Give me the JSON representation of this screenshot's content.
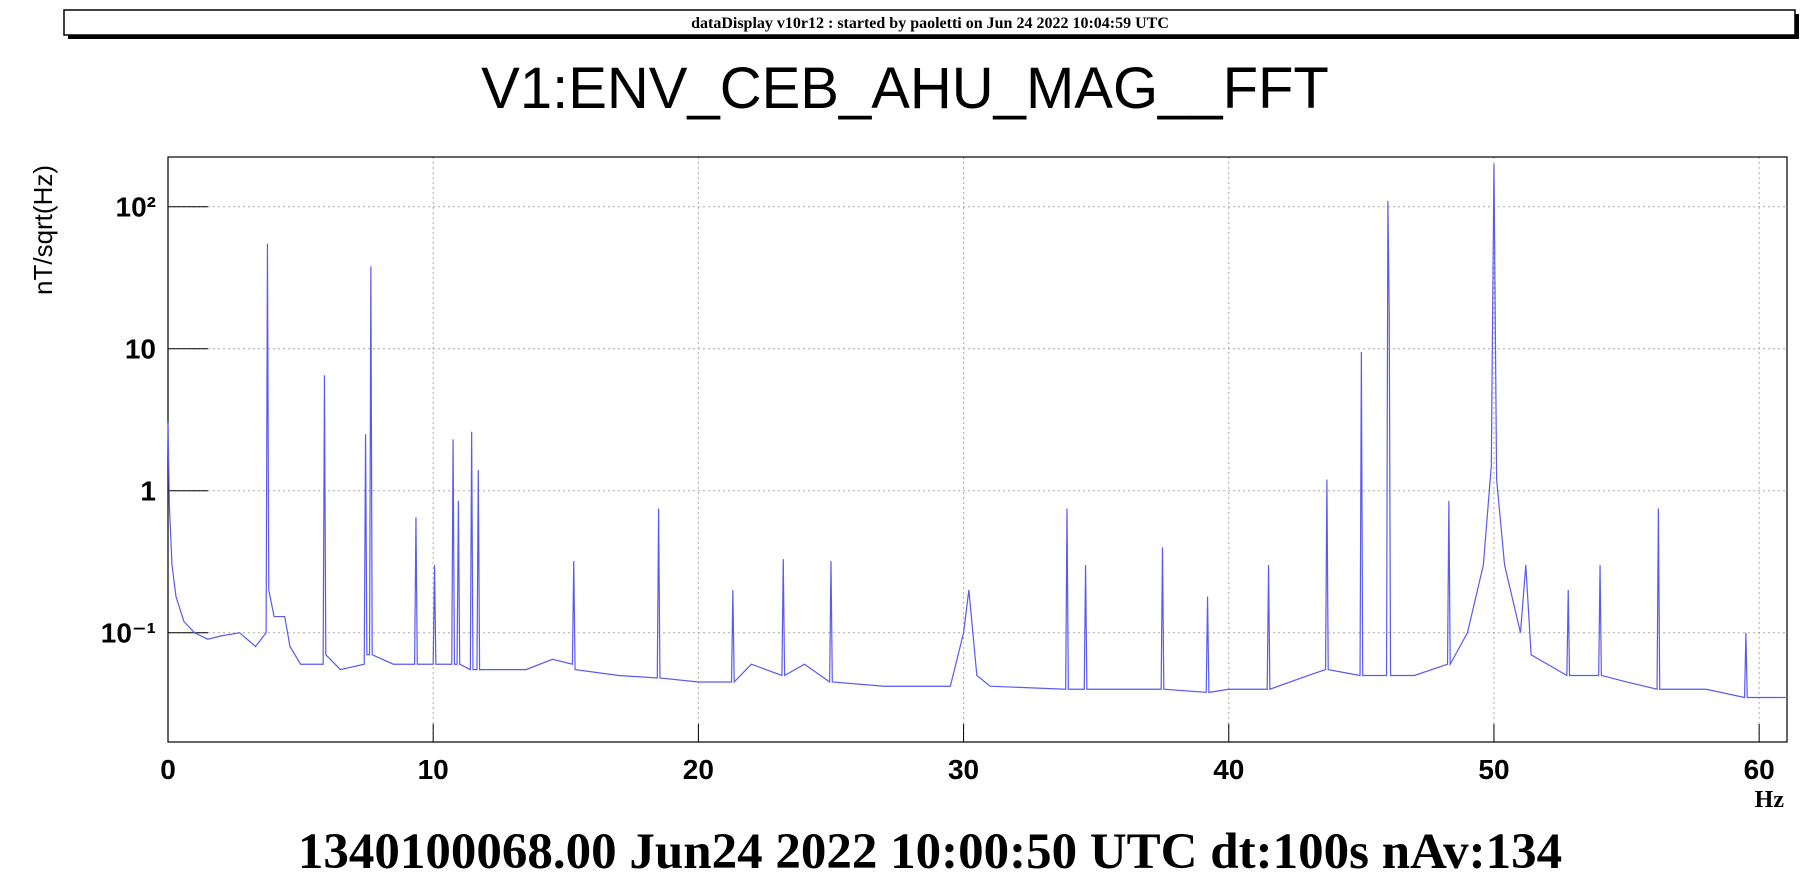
{
  "header": {
    "banner": "dataDisplay v10r12 : started by paoletti on Jun 24 2022 10:04:59 UTC"
  },
  "chart_data": {
    "type": "line",
    "title": "V1:ENV_CEB_AHU_MAG__FFT",
    "x_label": "Hz",
    "y_label": "nT/sqrt(Hz)",
    "footer": "1340100068.00 Jun24 2022 10:00:50 UTC dt:100s nAv:134",
    "log_y": true,
    "grid": true,
    "xlim": [
      0,
      61.05
    ],
    "ylim": [
      0.017,
      224
    ],
    "xticks": [
      0,
      10,
      20,
      30,
      40,
      50,
      60
    ],
    "yticks": [
      {
        "value": 0.1,
        "label": "10⁻¹"
      },
      1,
      10,
      {
        "value": 100,
        "label": "10²"
      }
    ],
    "x": [
      0,
      0.05,
      0.15,
      0.3,
      0.6,
      1,
      1.5,
      2,
      2.7,
      3.3,
      3.7,
      3.75,
      3.8,
      4,
      4.4,
      4.6,
      5,
      5.85,
      5.9,
      5.95,
      6.5,
      7.4,
      7.45,
      7.5,
      7.6,
      7.65,
      7.7,
      8.5,
      9.3,
      9.35,
      9.4,
      10,
      10.05,
      10.1,
      10.7,
      10.75,
      10.8,
      10.9,
      10.95,
      11,
      11.4,
      11.45,
      11.5,
      11.65,
      11.7,
      11.75,
      12.5,
      13.5,
      14.5,
      15.25,
      15.3,
      15.35,
      17,
      18.45,
      18.5,
      18.55,
      20,
      21.25,
      21.3,
      21.35,
      22,
      23.15,
      23.2,
      23.25,
      24,
      24.95,
      25,
      25.05,
      27,
      29.5,
      30,
      30.2,
      30.5,
      31,
      33.85,
      33.9,
      33.95,
      34.55,
      34.6,
      34.65,
      36,
      37.45,
      37.5,
      37.55,
      39.15,
      39.2,
      39.25,
      40,
      41.45,
      41.5,
      41.55,
      43,
      43.65,
      43.7,
      43.75,
      44.95,
      45,
      45.05,
      45.95,
      46,
      46.05,
      46.1,
      47,
      48.25,
      48.3,
      48.35,
      49,
      49.6,
      49.9,
      50,
      50.1,
      50.4,
      51,
      51.2,
      51.4,
      52.75,
      52.8,
      52.85,
      53.95,
      54,
      54.05,
      55,
      56.15,
      56.2,
      56.25,
      58,
      59.45,
      59.5,
      59.55,
      61
    ],
    "series": [
      {
        "name": "V1:ENV_CEB_AHU_MAG__FFT",
        "color": "#5a5af0",
        "values": [
          3,
          0.8,
          0.3,
          0.18,
          0.12,
          0.1,
          0.09,
          0.095,
          0.1,
          0.08,
          0.1,
          55,
          0.2,
          0.13,
          0.13,
          0.08,
          0.06,
          0.06,
          6.5,
          0.07,
          0.055,
          0.06,
          2.5,
          0.07,
          0.07,
          38,
          0.07,
          0.06,
          0.06,
          0.65,
          0.06,
          0.06,
          0.3,
          0.06,
          0.06,
          2.3,
          0.06,
          0.06,
          0.85,
          0.06,
          0.055,
          2.6,
          0.055,
          0.055,
          1.4,
          0.055,
          0.055,
          0.055,
          0.065,
          0.06,
          0.32,
          0.055,
          0.05,
          0.048,
          0.75,
          0.048,
          0.045,
          0.045,
          0.2,
          0.045,
          0.06,
          0.05,
          0.33,
          0.05,
          0.06,
          0.045,
          0.32,
          0.045,
          0.042,
          0.042,
          0.1,
          0.2,
          0.05,
          0.042,
          0.04,
          0.75,
          0.04,
          0.04,
          0.3,
          0.04,
          0.04,
          0.04,
          0.4,
          0.04,
          0.038,
          0.18,
          0.038,
          0.04,
          0.04,
          0.3,
          0.04,
          0.05,
          0.055,
          1.2,
          0.055,
          0.05,
          9.5,
          0.05,
          0.05,
          110,
          18,
          0.05,
          0.05,
          0.06,
          0.85,
          0.06,
          0.1,
          0.3,
          1.5,
          200,
          1.2,
          0.3,
          0.1,
          0.3,
          0.07,
          0.05,
          0.2,
          0.05,
          0.05,
          0.3,
          0.05,
          0.045,
          0.04,
          0.75,
          0.04,
          0.04,
          0.035,
          0.1,
          0.035,
          0.035
        ]
      }
    ]
  }
}
